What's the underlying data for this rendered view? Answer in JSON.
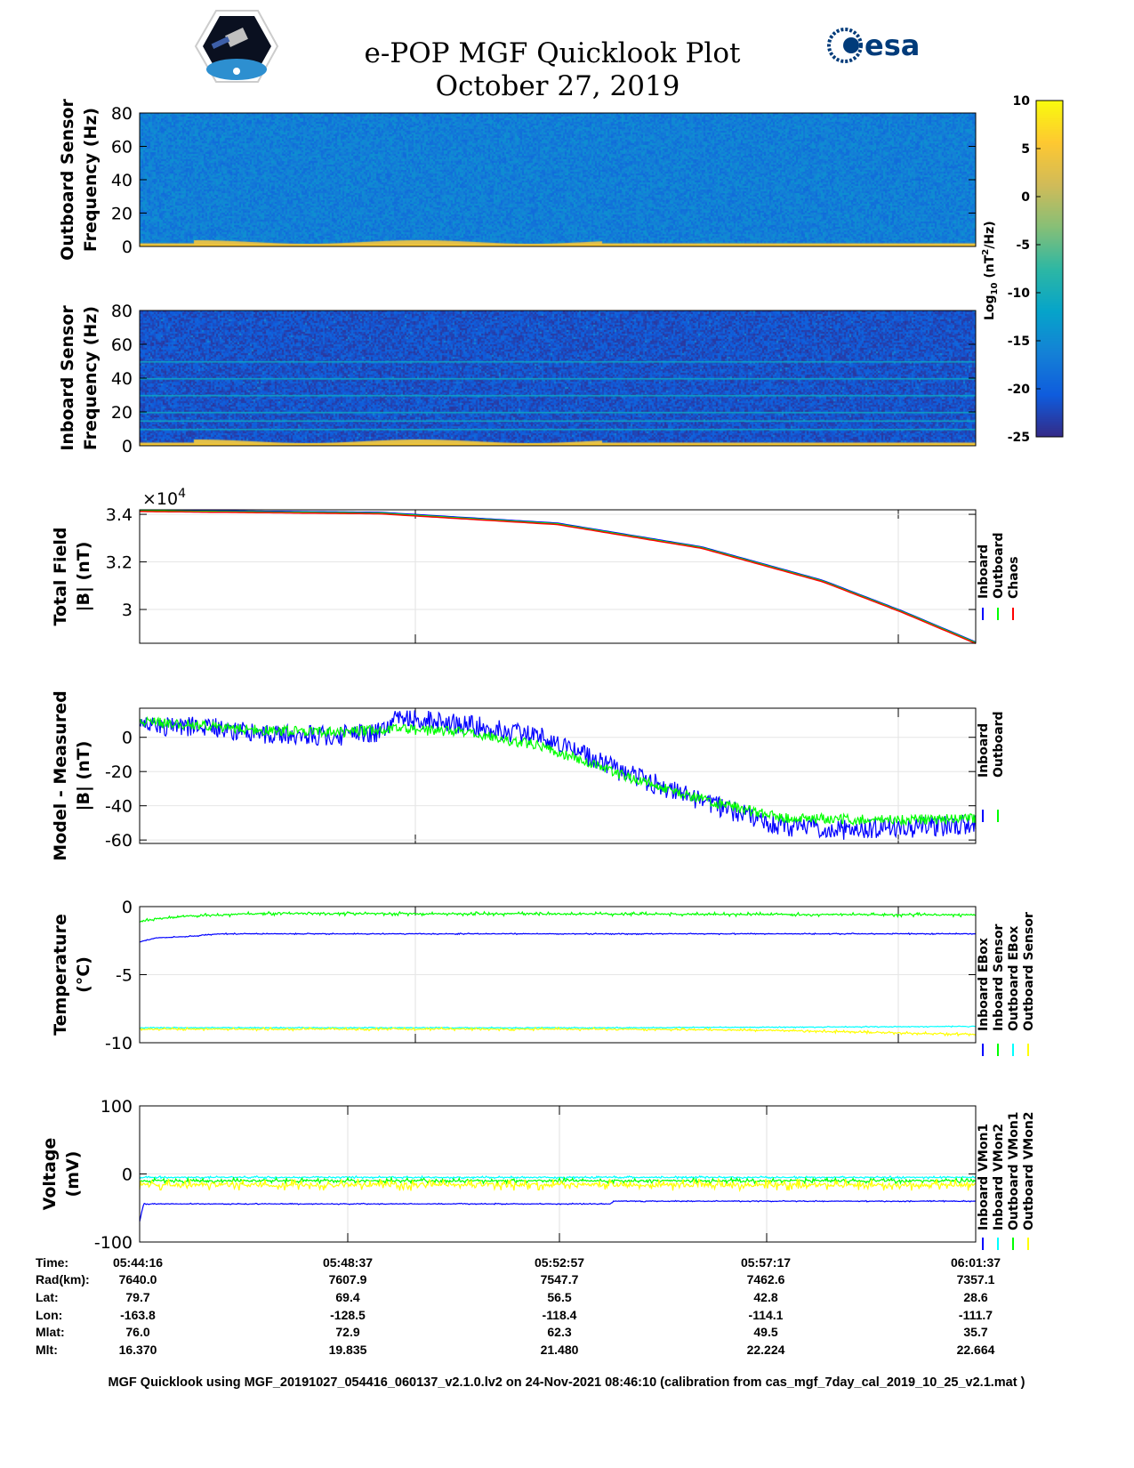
{
  "header": {
    "title": "e-POP MGF Quicklook Plot",
    "date": "October 27, 2019",
    "logo_left": "CASSIOPE",
    "logo_right": "esa"
  },
  "colorbar": {
    "label": "Log10 (nT2/Hz)",
    "label_main": "Log",
    "label_sub": "10",
    "label_unit": " (nT",
    "label_sup": "2",
    "label_end": "/Hz)",
    "ticks": [
      "10",
      "5",
      "0",
      "-5",
      "-10",
      "-15",
      "-20",
      "-25"
    ],
    "range": [
      -25,
      10
    ]
  },
  "colors": {
    "inboard": "#0000ff",
    "outboard": "#00ff00",
    "chaos": "#ff0000",
    "cyan": "#00ffff",
    "yellow": "#ffff00"
  },
  "chart_data": [
    {
      "type": "heatmap",
      "title": "Outboard Sensor",
      "ylabel": [
        "Outboard Sensor",
        "Frequency (Hz)"
      ],
      "ylim": [
        0,
        80
      ],
      "yticks": [
        "80",
        "60",
        "40",
        "20",
        "0"
      ],
      "background_level": -16.5,
      "low_freq_level": 3
    },
    {
      "type": "heatmap",
      "title": "Inboard Sensor",
      "ylabel": [
        "Inboard Sensor",
        "Frequency (Hz)"
      ],
      "ylim": [
        0,
        80
      ],
      "yticks": [
        "80",
        "60",
        "40",
        "20",
        "0"
      ],
      "background_level": -21.5,
      "low_freq_level": 3,
      "lines_hz": [
        10,
        15,
        20,
        30,
        40,
        50
      ]
    },
    {
      "type": "line",
      "ylabel": [
        "Total Field",
        "|B| (nT)"
      ],
      "exponent_base": "×10",
      "exponent_power": "4",
      "ylim": [
        2.858,
        3.419
      ],
      "yticks": [
        "3.4",
        "3.2",
        "3"
      ],
      "ytick_values": [
        3.4,
        3.2,
        3.0
      ],
      "series": [
        {
          "name": "Inboard",
          "color": "#0000ff",
          "x": [
            0,
            300,
            520,
            700,
            850,
            950,
            1041
          ],
          "y": [
            3.415,
            3.405,
            3.36,
            3.26,
            3.12,
            2.99,
            2.86
          ]
        },
        {
          "name": "Outboard",
          "color": "#00ff00",
          "x": [
            0,
            300,
            520,
            700,
            850,
            950,
            1041
          ],
          "y": [
            3.415,
            3.405,
            3.36,
            3.26,
            3.12,
            2.99,
            2.86
          ]
        },
        {
          "name": "Chaos",
          "color": "#ff0000",
          "x": [
            0,
            300,
            520,
            700,
            850,
            950,
            1041
          ],
          "y": [
            3.415,
            3.405,
            3.36,
            3.26,
            3.12,
            2.99,
            2.86
          ]
        }
      ]
    },
    {
      "type": "line",
      "ylabel": [
        "Model - Measured",
        "|B| (nT)"
      ],
      "ylim": [
        -62,
        17
      ],
      "yticks": [
        "0",
        "-20",
        "-40",
        "-60"
      ],
      "ytick_values": [
        0,
        -20,
        -40,
        -60
      ],
      "series": [
        {
          "name": "Inboard",
          "color": "#0000ff",
          "x": [
            0,
            80,
            150,
            250,
            310,
            320,
            400,
            500,
            600,
            700,
            750,
            800,
            880,
            1000,
            1041
          ],
          "y": [
            6,
            6,
            2,
            1,
            4,
            11,
            8,
            0,
            -20,
            -37,
            -45,
            -52,
            -54,
            -52,
            -50
          ],
          "noise": 6
        },
        {
          "name": "Outboard",
          "color": "#00ff00",
          "x": [
            0,
            80,
            150,
            250,
            310,
            320,
            400,
            500,
            600,
            700,
            750,
            800,
            880,
            1000,
            1041
          ],
          "y": [
            9,
            7,
            4,
            3,
            5,
            5,
            3,
            -5,
            -22,
            -36,
            -42,
            -47,
            -48,
            -48,
            -47
          ],
          "noise": 3
        }
      ]
    },
    {
      "type": "line",
      "ylabel": [
        "Temperature",
        "(°C)"
      ],
      "ylim": [
        -10,
        0
      ],
      "yticks": [
        "0",
        "-5",
        "-10"
      ],
      "ytick_values": [
        0,
        -5,
        -10
      ],
      "series": [
        {
          "name": "Inboard EBox",
          "color": "#0000ff",
          "x": [
            0,
            20,
            60,
            100,
            1041
          ],
          "y": [
            -2.6,
            -2.3,
            -2.2,
            -2.0,
            -2.0
          ],
          "noise": 0.05
        },
        {
          "name": "Inboard Sensor",
          "color": "#00ff00",
          "x": [
            0,
            20,
            60,
            150,
            1041
          ],
          "y": [
            -1.1,
            -0.9,
            -0.7,
            -0.5,
            -0.6
          ],
          "noise": 0.15
        },
        {
          "name": "Outboard EBox",
          "color": "#00ffff",
          "x": [
            0,
            600,
            1041
          ],
          "y": [
            -8.9,
            -8.9,
            -8.8
          ],
          "noise": 0.05
        },
        {
          "name": "Outboard Sensor",
          "color": "#ffff00",
          "x": [
            0,
            600,
            800,
            1041
          ],
          "y": [
            -9.0,
            -9.0,
            -9.1,
            -9.4
          ],
          "noise": 0.12
        }
      ]
    },
    {
      "type": "line",
      "ylabel": [
        "Voltage",
        "(mV)"
      ],
      "ylim": [
        -100,
        100
      ],
      "yticks": [
        "100",
        "0",
        "-100"
      ],
      "ytick_values": [
        100,
        0,
        -100
      ],
      "series": [
        {
          "name": "Inboard VMon1",
          "color": "#0000ff",
          "x": [
            0,
            5,
            586,
            590,
            1041
          ],
          "y": [
            -70,
            -44,
            -44,
            -40,
            -40
          ],
          "noise": 1
        },
        {
          "name": "Inboard VMon2",
          "color": "#00ffff",
          "x": [
            0,
            1041
          ],
          "y": [
            -5,
            -5
          ],
          "noise": 2
        },
        {
          "name": "Outboard VMon1",
          "color": "#00ff00",
          "x": [
            0,
            1041
          ],
          "y": [
            -10,
            -10
          ],
          "noise": 4
        },
        {
          "name": "Outboard VMon2",
          "color": "#ffff00",
          "x": [
            0,
            1041
          ],
          "y": [
            -16,
            -16
          ],
          "noise": 9
        }
      ]
    }
  ],
  "legends": [
    [
      "Inboard",
      "Outboard",
      "Chaos"
    ],
    [
      "Inboard",
      "Outboard"
    ],
    [
      "Inboard EBox",
      "Inboard Sensor",
      "Outboard EBox",
      "Outboard Sensor"
    ],
    [
      "Inboard VMon1",
      "Inboard VMon2",
      "Outboard VMon1",
      "Outboard VMon2"
    ]
  ],
  "table": {
    "row_labels": [
      "Time:",
      "Rad(km):",
      "Lat:",
      "Lon:",
      "Mlat:",
      "Mlt:"
    ],
    "columns": [
      [
        "05:44:16",
        "7640.0",
        "79.7",
        "-163.8",
        "76.0",
        "16.370"
      ],
      [
        "05:48:37",
        "7607.9",
        "69.4",
        "-128.5",
        "72.9",
        "19.835"
      ],
      [
        "05:52:57",
        "7547.7",
        "56.5",
        "-118.4",
        "62.3",
        "21.480"
      ],
      [
        "05:57:17",
        "7462.6",
        "42.8",
        "-114.1",
        "49.5",
        "22.224"
      ],
      [
        "06:01:37",
        "7357.1",
        "28.6",
        "-111.7",
        "35.7",
        "22.664"
      ]
    ]
  },
  "footer": "MGF Quicklook using MGF_20191027_054416_060137_v2.1.0.lv2 on 24-Nov-2021 08:46:10 (calibration from cas_mgf_7day_cal_2019_10_25_v2.1.mat )"
}
